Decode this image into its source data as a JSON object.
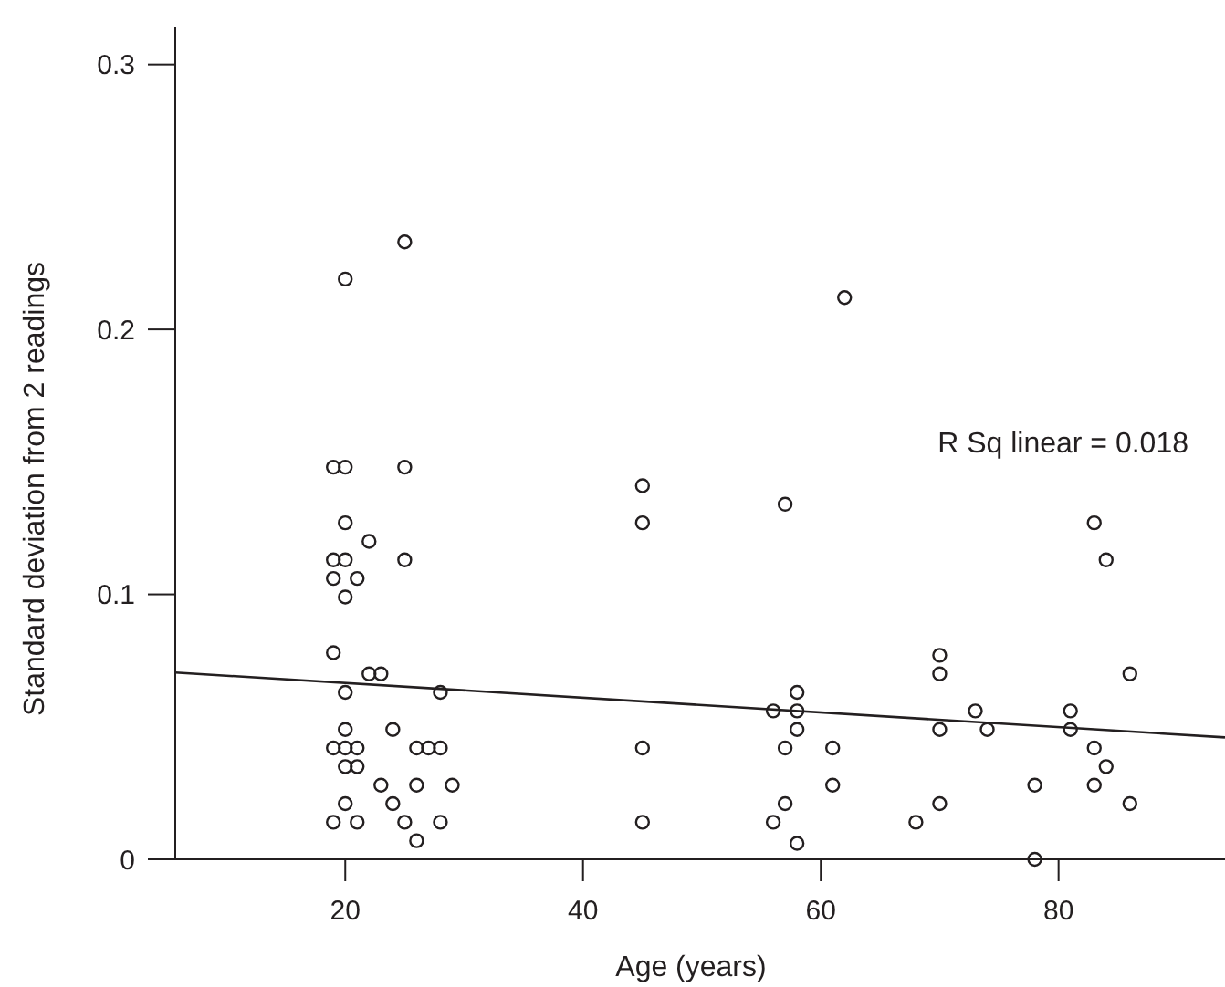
{
  "chart_data": {
    "type": "scatter",
    "xlabel": "Age (years)",
    "ylabel": "Standard deviation from 2 readings",
    "xlim": [
      5.7,
      94
    ],
    "ylim": [
      0,
      0.314
    ],
    "xticks": [
      20,
      40,
      60,
      80
    ],
    "yticks": [
      0,
      0.1,
      0.2,
      0.3
    ],
    "grid": false,
    "annotations": [
      "R Sq linear = 0.018"
    ],
    "series": [
      {
        "marker": "circle",
        "color": "#231f20",
        "x": [
          25,
          20,
          19,
          20,
          25,
          20,
          22,
          19,
          20,
          25,
          19,
          21,
          20,
          19,
          22,
          23,
          20,
          28,
          20,
          24,
          19,
          20,
          21,
          26,
          27,
          28,
          20,
          21,
          23,
          26,
          29,
          20,
          24,
          19,
          21,
          25,
          28,
          26,
          62,
          45,
          45,
          57,
          70,
          70,
          58,
          56,
          58,
          73,
          58,
          70,
          74,
          45,
          57,
          61,
          61,
          57,
          70,
          45,
          56,
          68,
          58,
          83,
          84,
          86,
          81,
          81,
          83,
          84,
          78,
          83,
          86,
          78
        ],
        "values": [
          0.233,
          0.219,
          0.148,
          0.148,
          0.148,
          0.127,
          0.12,
          0.113,
          0.113,
          0.113,
          0.106,
          0.106,
          0.099,
          0.078,
          0.07,
          0.07,
          0.063,
          0.063,
          0.049,
          0.049,
          0.042,
          0.042,
          0.042,
          0.042,
          0.042,
          0.042,
          0.035,
          0.035,
          0.028,
          0.028,
          0.028,
          0.021,
          0.021,
          0.014,
          0.014,
          0.014,
          0.014,
          0.007,
          0.212,
          0.141,
          0.127,
          0.134,
          0.077,
          0.07,
          0.063,
          0.056,
          0.056,
          0.056,
          0.049,
          0.049,
          0.049,
          0.042,
          0.042,
          0.042,
          0.028,
          0.021,
          0.021,
          0.014,
          0.014,
          0.014,
          0.006,
          0.127,
          0.113,
          0.07,
          0.056,
          0.049,
          0.042,
          0.035,
          0.028,
          0.028,
          0.021,
          0
        ]
      },
      {
        "type": "line",
        "color": "#231f20",
        "x": [
          5.7,
          94
        ],
        "values": [
          0.0705,
          0.046
        ]
      }
    ]
  }
}
